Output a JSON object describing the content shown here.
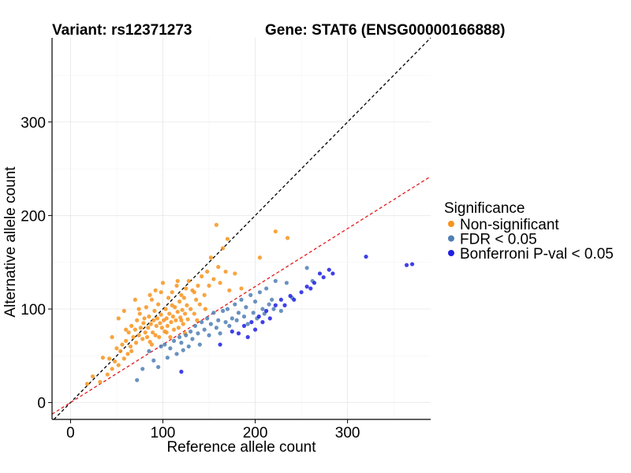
{
  "chart_data": {
    "type": "scatter",
    "title_left": "Variant: rs12371273",
    "title_right": "Gene: STAT6 (ENSG00000166888)",
    "xlabel": "Reference allele count",
    "ylabel": "Alternative allele count",
    "xlim": [
      -20,
      390
    ],
    "ylim": [
      -18,
      390
    ],
    "x_ticks": [
      0,
      100,
      200,
      300
    ],
    "y_ticks": [
      0,
      100,
      200,
      300
    ],
    "grid": true,
    "legend": {
      "title": "Significance",
      "position": "right",
      "entries": [
        {
          "label": "Non-significant",
          "color": "#F7941D"
        },
        {
          "label": "FDR < 0.05",
          "color": "#4F7FB4"
        },
        {
          "label": "Bonferroni P-val < 0.05",
          "color": "#1F1FE6"
        }
      ]
    },
    "reference_lines": [
      {
        "name": "identity line",
        "slope": 1.0,
        "intercept": 0,
        "color": "#000000",
        "dash": "4,3"
      },
      {
        "name": "expected ratio line",
        "slope": 0.62,
        "intercept": 0,
        "color": "#E41A1C",
        "dash": "4,3"
      }
    ],
    "series": [
      {
        "name": "Non-significant",
        "color": "#F7941D",
        "points": [
          [
            18,
            20
          ],
          [
            24,
            28
          ],
          [
            32,
            22
          ],
          [
            35,
            48
          ],
          [
            42,
            47
          ],
          [
            45,
            36
          ],
          [
            48,
            44
          ],
          [
            50,
            58
          ],
          [
            52,
            40
          ],
          [
            54,
            55
          ],
          [
            56,
            62
          ],
          [
            58,
            47
          ],
          [
            60,
            66
          ],
          [
            62,
            52
          ],
          [
            63,
            75
          ],
          [
            65,
            60
          ],
          [
            66,
            82
          ],
          [
            68,
            70
          ],
          [
            70,
            78
          ],
          [
            71,
            64
          ],
          [
            72,
            88
          ],
          [
            74,
            72
          ],
          [
            75,
            95
          ],
          [
            76,
            80
          ],
          [
            78,
            68
          ],
          [
            79,
            85
          ],
          [
            80,
            90
          ],
          [
            81,
            75
          ],
          [
            82,
            102
          ],
          [
            83,
            70
          ],
          [
            84,
            80
          ],
          [
            85,
            92
          ],
          [
            86,
            65
          ],
          [
            87,
            84
          ],
          [
            88,
            110
          ],
          [
            89,
            75
          ],
          [
            90,
            88
          ],
          [
            91,
            98
          ],
          [
            92,
            72
          ],
          [
            93,
            82
          ],
          [
            94,
            90
          ],
          [
            95,
            105
          ],
          [
            96,
            70
          ],
          [
            97,
            85
          ],
          [
            98,
            94
          ],
          [
            99,
            80
          ],
          [
            100,
            128
          ],
          [
            101,
            88
          ],
          [
            102,
            76
          ],
          [
            103,
            100
          ],
          [
            104,
            90
          ],
          [
            105,
            82
          ],
          [
            106,
            112
          ],
          [
            107,
            95
          ],
          [
            108,
            70
          ],
          [
            109,
            86
          ],
          [
            110,
            118
          ],
          [
            111,
            92
          ],
          [
            112,
            78
          ],
          [
            113,
            102
          ],
          [
            114,
            88
          ],
          [
            115,
            125
          ],
          [
            116,
            97
          ],
          [
            117,
            80
          ],
          [
            118,
            108
          ],
          [
            119,
            91
          ],
          [
            120,
            115
          ],
          [
            121,
            99
          ],
          [
            122,
            84
          ],
          [
            123,
            112
          ],
          [
            124,
            95
          ],
          [
            125,
            122
          ],
          [
            126,
            104
          ],
          [
            127,
            89
          ],
          [
            128,
            130
          ],
          [
            130,
            100
          ],
          [
            132,
            120
          ],
          [
            134,
            95
          ],
          [
            136,
            110
          ],
          [
            138,
            125
          ],
          [
            140,
            105
          ],
          [
            142,
            135
          ],
          [
            145,
            115
          ],
          [
            148,
            140
          ],
          [
            150,
            125
          ],
          [
            152,
            155
          ],
          [
            155,
            132
          ],
          [
            158,
            190
          ],
          [
            160,
            145
          ],
          [
            162,
            128
          ],
          [
            165,
            165
          ],
          [
            168,
            140
          ],
          [
            170,
            175
          ],
          [
            172,
            120
          ],
          [
            178,
            138
          ],
          [
            185,
            122
          ],
          [
            205,
            155
          ],
          [
            222,
            183
          ],
          [
            235,
            176
          ],
          [
            58,
            98
          ],
          [
            66,
            55
          ],
          [
            74,
            100
          ],
          [
            86,
            115
          ],
          [
            92,
            120
          ],
          [
            104,
            75
          ],
          [
            116,
            130
          ],
          [
            124,
            74
          ],
          [
            137,
            88
          ],
          [
            146,
            100
          ],
          [
            60,
            78
          ],
          [
            45,
            70
          ],
          [
            40,
            30
          ],
          [
            52,
            90
          ],
          [
            70,
            110
          ],
          [
            88,
            62
          ],
          [
            98,
            118
          ],
          [
            110,
            104
          ],
          [
            120,
            88
          ],
          [
            134,
            118
          ]
        ]
      },
      {
        "name": "FDR < 0.05",
        "color": "#4F7FB4",
        "points": [
          [
            72,
            24
          ],
          [
            78,
            36
          ],
          [
            85,
            55
          ],
          [
            90,
            45
          ],
          [
            95,
            38
          ],
          [
            98,
            60
          ],
          [
            102,
            62
          ],
          [
            105,
            48
          ],
          [
            108,
            58
          ],
          [
            112,
            66
          ],
          [
            115,
            52
          ],
          [
            118,
            70
          ],
          [
            120,
            64
          ],
          [
            122,
            56
          ],
          [
            125,
            72
          ],
          [
            128,
            60
          ],
          [
            130,
            76
          ],
          [
            132,
            68
          ],
          [
            135,
            82
          ],
          [
            138,
            74
          ],
          [
            140,
            62
          ],
          [
            142,
            86
          ],
          [
            145,
            78
          ],
          [
            148,
            90
          ],
          [
            150,
            72
          ],
          [
            152,
            84
          ],
          [
            155,
            96
          ],
          [
            158,
            80
          ],
          [
            160,
            88
          ],
          [
            162,
            74
          ],
          [
            165,
            98
          ],
          [
            168,
            86
          ],
          [
            170,
            100
          ],
          [
            172,
            82
          ],
          [
            175,
            90
          ],
          [
            178,
            105
          ],
          [
            180,
            88
          ],
          [
            182,
            96
          ],
          [
            185,
            110
          ],
          [
            188,
            92
          ],
          [
            190,
            102
          ],
          [
            192,
            84
          ],
          [
            195,
            115
          ],
          [
            198,
            96
          ],
          [
            200,
            108
          ],
          [
            202,
            90
          ],
          [
            205,
            118
          ],
          [
            208,
            100
          ],
          [
            210,
            95
          ],
          [
            212,
            122
          ],
          [
            215,
            105
          ],
          [
            218,
            110
          ],
          [
            220,
            100
          ],
          [
            222,
            130
          ],
          [
            228,
            98
          ],
          [
            234,
            128
          ],
          [
            240,
            112
          ],
          [
            256,
            144
          ],
          [
            262,
            130
          ]
        ]
      },
      {
        "name": "Bonferroni P-val < 0.05",
        "color": "#1F1FE6",
        "points": [
          [
            120,
            33
          ],
          [
            162,
            62
          ],
          [
            175,
            76
          ],
          [
            182,
            74
          ],
          [
            188,
            82
          ],
          [
            192,
            70
          ],
          [
            196,
            86
          ],
          [
            200,
            78
          ],
          [
            204,
            92
          ],
          [
            208,
            86
          ],
          [
            212,
            98
          ],
          [
            216,
            90
          ],
          [
            222,
            104
          ],
          [
            228,
            110
          ],
          [
            232,
            104
          ],
          [
            238,
            114
          ],
          [
            242,
            110
          ],
          [
            250,
            118
          ],
          [
            256,
            124
          ],
          [
            260,
            122
          ],
          [
            264,
            128
          ],
          [
            270,
            138
          ],
          [
            274,
            134
          ],
          [
            280,
            142
          ],
          [
            284,
            138
          ],
          [
            320,
            156
          ],
          [
            364,
            147
          ],
          [
            370,
            148
          ]
        ]
      }
    ]
  }
}
